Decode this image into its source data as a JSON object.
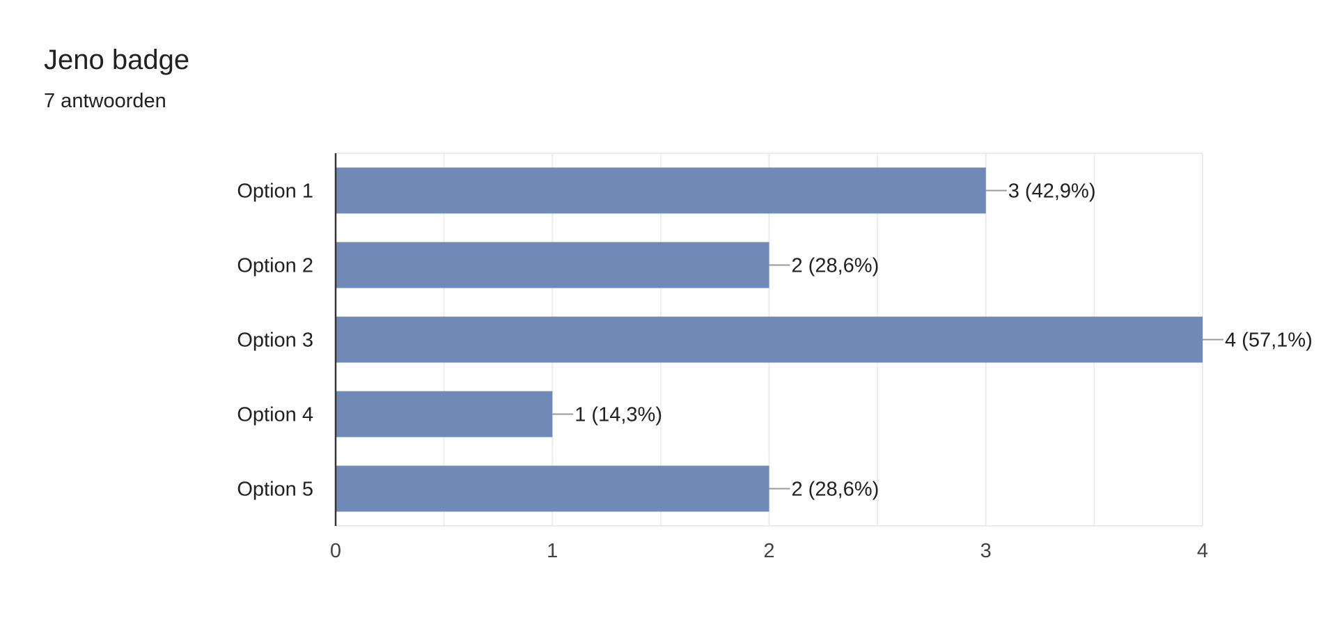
{
  "header": {
    "title": "Jeno badge",
    "response_count": "7 antwoorden"
  },
  "colors": {
    "bar": "#7189b6",
    "grid": "#ebebeb",
    "axis": "#333333",
    "leader": "#999999"
  },
  "chart_data": {
    "type": "bar",
    "orientation": "horizontal",
    "categories": [
      "Option 1",
      "Option 2",
      "Option 3",
      "Option 4",
      "Option 5"
    ],
    "values": [
      3,
      2,
      4,
      1,
      2
    ],
    "data_labels": [
      "3 (42,9%)",
      "2 (28,6%)",
      "4 (57,1%)",
      "1 (14,3%)",
      "2 (28,6%)"
    ],
    "title": "Jeno badge",
    "subtitle": "7 antwoorden",
    "xlim": [
      0,
      4
    ],
    "xticks": [
      0,
      1,
      2,
      3,
      4
    ],
    "xtick_labels": [
      "0",
      "1",
      "2",
      "3",
      "4"
    ],
    "grid": true,
    "legend": "none"
  }
}
